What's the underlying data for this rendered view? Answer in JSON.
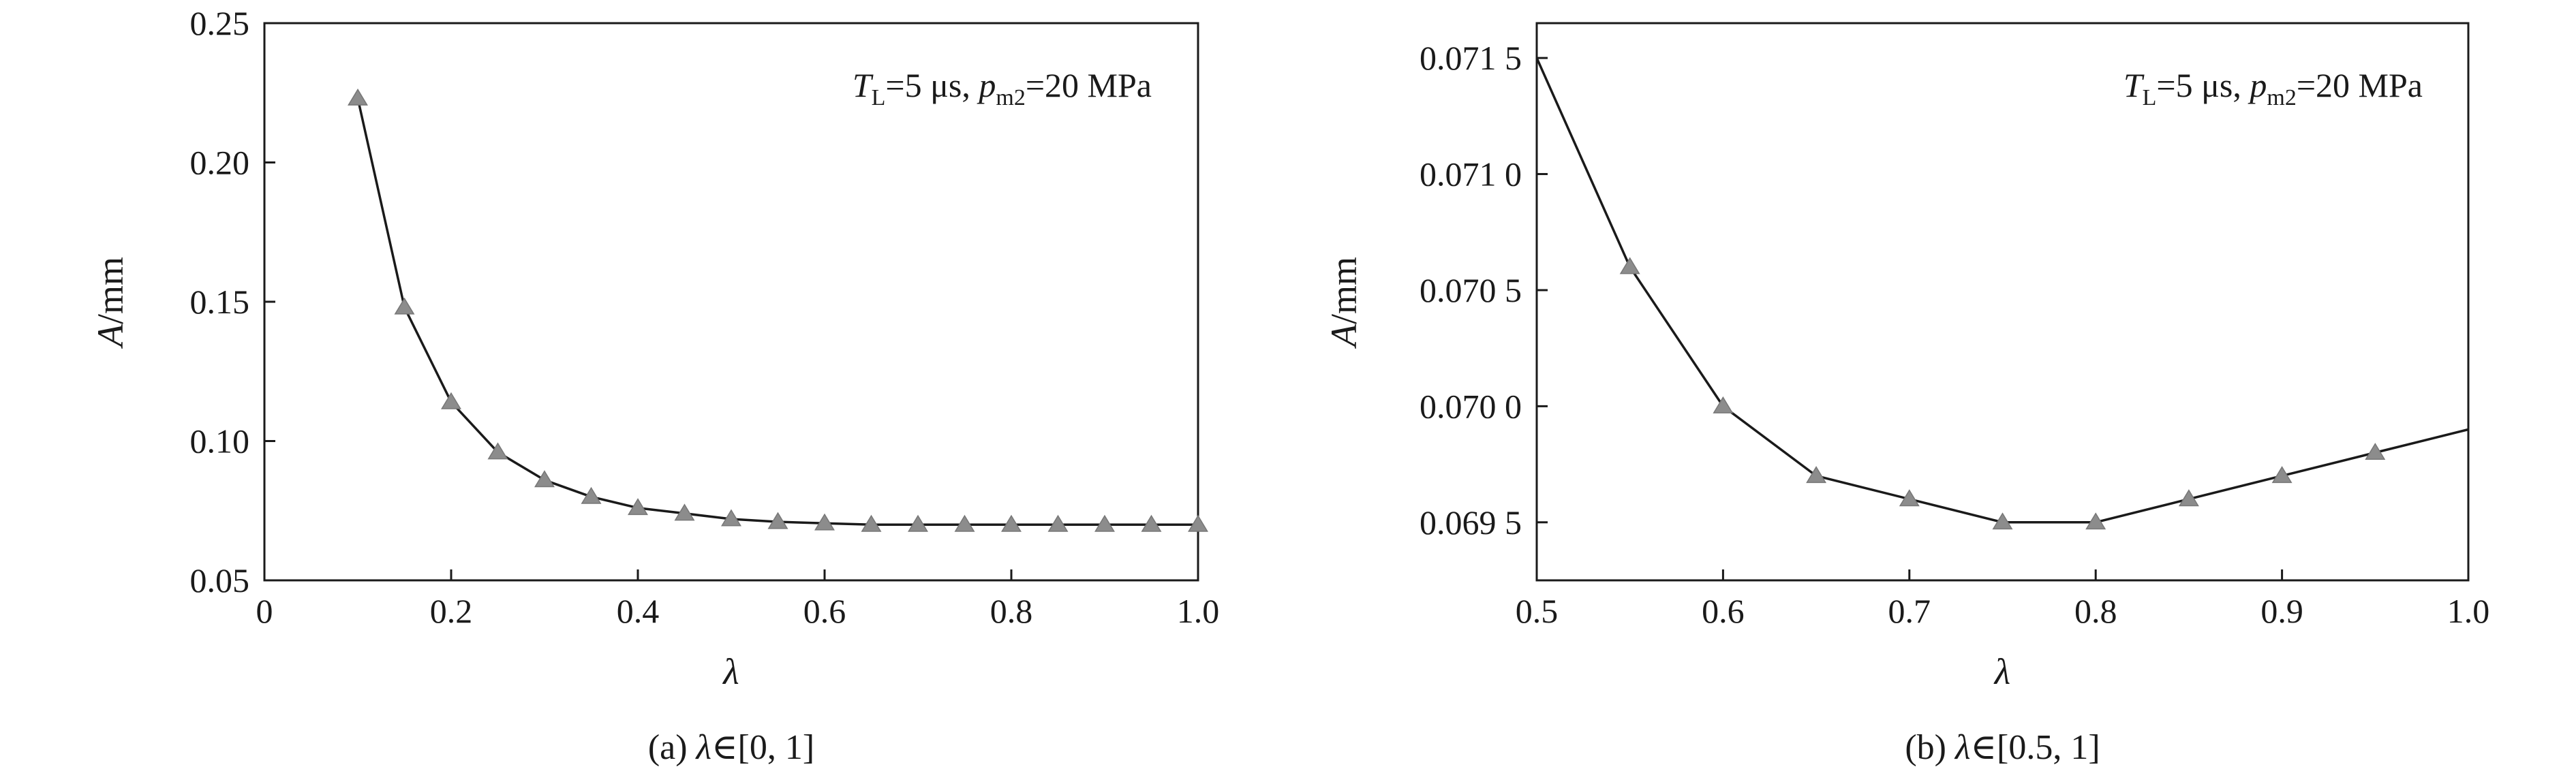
{
  "chart_data": [
    {
      "type": "line",
      "panel": "a",
      "caption_prefix": "(a) ",
      "caption_var": "λ",
      "caption_suffix": "∈[0, 1]",
      "annotation": {
        "T": "T",
        "T_sub": "L",
        "T_val": "=5 μs, ",
        "p": "p",
        "p_sub": "m2",
        "p_val": "=20 MPa"
      },
      "xlabel": "λ",
      "ylabel_var": "A",
      "ylabel_unit": "/mm",
      "xlim": [
        0,
        1.0
      ],
      "ylim": [
        0.05,
        0.25
      ],
      "x_ticks": [
        0,
        0.2,
        0.4,
        0.6,
        0.8,
        1.0
      ],
      "x_tick_labels": [
        "0",
        "0.2",
        "0.4",
        "0.6",
        "0.8",
        "1.0"
      ],
      "y_ticks": [
        0.05,
        0.1,
        0.15,
        0.2,
        0.25
      ],
      "y_tick_labels": [
        "0.05",
        "0.10",
        "0.15",
        "0.20",
        "0.25"
      ],
      "series": [
        {
          "x": [
            0.1,
            0.15,
            0.2,
            0.25,
            0.3,
            0.35,
            0.4,
            0.45,
            0.5,
            0.55,
            0.6,
            0.65,
            0.7,
            0.75,
            0.8,
            0.85,
            0.9,
            0.95,
            1.0
          ],
          "values": [
            0.223,
            0.148,
            0.114,
            0.096,
            0.086,
            0.08,
            0.076,
            0.074,
            0.072,
            0.071,
            0.0705,
            0.07,
            0.07,
            0.07,
            0.07,
            0.07,
            0.07,
            0.07,
            0.07
          ]
        }
      ],
      "markers": "gray-triangles",
      "line_color": "#1a1a1a",
      "marker_color": "#8c8c8c"
    },
    {
      "type": "line",
      "panel": "b",
      "caption_prefix": "(b) ",
      "caption_var": "λ",
      "caption_suffix": "∈[0.5, 1]",
      "annotation": {
        "T": "T",
        "T_sub": "L",
        "T_val": "=5 μs, ",
        "p": "p",
        "p_sub": "m2",
        "p_val": "=20 MPa"
      },
      "xlabel": "λ",
      "ylabel_var": "A",
      "ylabel_unit": "/mm",
      "xlim": [
        0.5,
        1.0
      ],
      "ylim": [
        0.06925,
        0.07165
      ],
      "x_ticks": [
        0.5,
        0.6,
        0.7,
        0.8,
        0.9,
        1.0
      ],
      "x_tick_labels": [
        "0.5",
        "0.6",
        "0.7",
        "0.8",
        "0.9",
        "1.0"
      ],
      "y_ticks": [
        0.0695,
        0.07,
        0.0705,
        0.071,
        0.0715
      ],
      "y_tick_labels": [
        "0.069 5",
        "0.070 0",
        "0.070 5",
        "0.071 0",
        "0.071 5"
      ],
      "series": [
        {
          "x": [
            0.5,
            0.55,
            0.6,
            0.65,
            0.7,
            0.75,
            0.8,
            0.85,
            0.9,
            0.95,
            1.0
          ],
          "values": [
            0.0715,
            0.0706,
            0.07,
            0.0697,
            0.0696,
            0.0695,
            0.0695,
            0.0696,
            0.0697,
            0.0698,
            0.0699
          ]
        }
      ],
      "marker_x": [
        0.55,
        0.6,
        0.65,
        0.7,
        0.75,
        0.8,
        0.85,
        0.9,
        0.95
      ],
      "marker_values": [
        0.0706,
        0.07,
        0.0697,
        0.0696,
        0.0695,
        0.0695,
        0.0696,
        0.0697,
        0.0698
      ],
      "markers": "gray-triangles",
      "line_color": "#1a1a1a",
      "marker_color": "#8c8c8c"
    }
  ]
}
